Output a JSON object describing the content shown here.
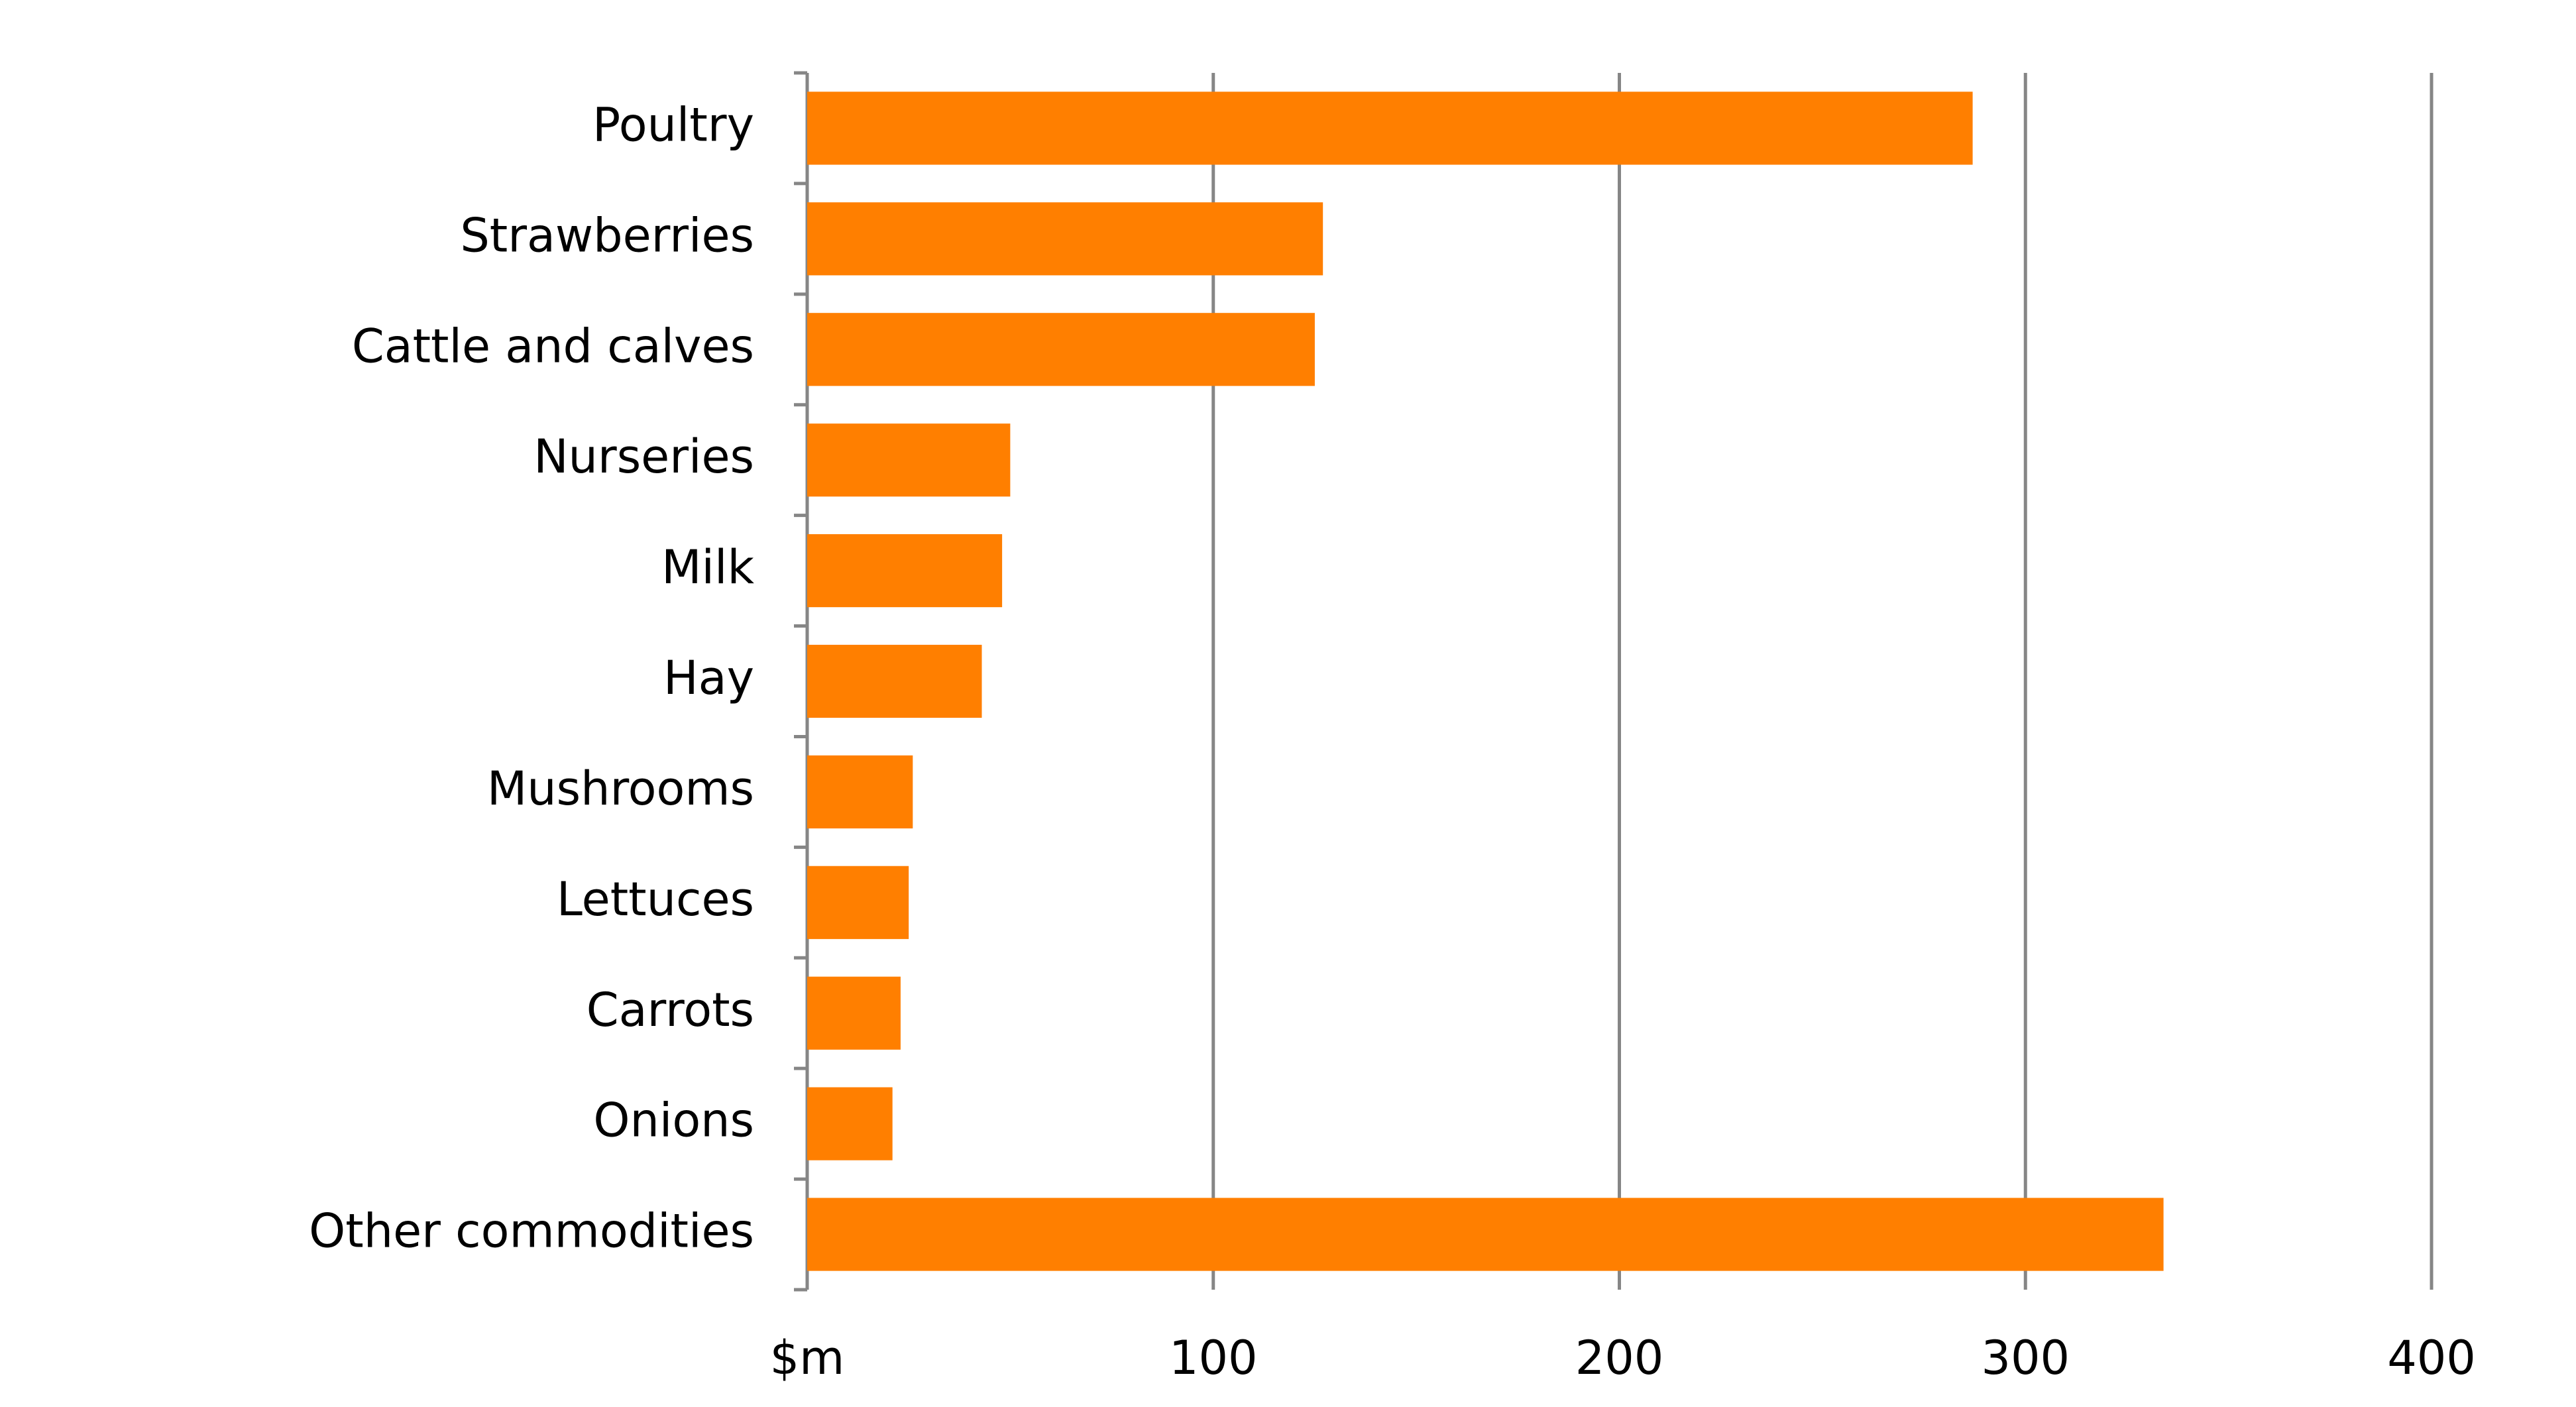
{
  "chart_data": {
    "type": "bar",
    "orientation": "horizontal",
    "categories": [
      "Poultry",
      "Strawberries",
      "Cattle and calves",
      "Nurseries",
      "Milk",
      "Hay",
      "Mushrooms",
      "Lettuces",
      "Carrots",
      "Onions",
      "Other commodities"
    ],
    "values": [
      287,
      127,
      125,
      50,
      48,
      43,
      26,
      25,
      23,
      21,
      334
    ],
    "color": "#ff7f00",
    "xlim": [
      0,
      400
    ],
    "xticks": [
      {
        "value": 0,
        "label": "$m"
      },
      100,
      200,
      300,
      400
    ],
    "grid": true
  }
}
